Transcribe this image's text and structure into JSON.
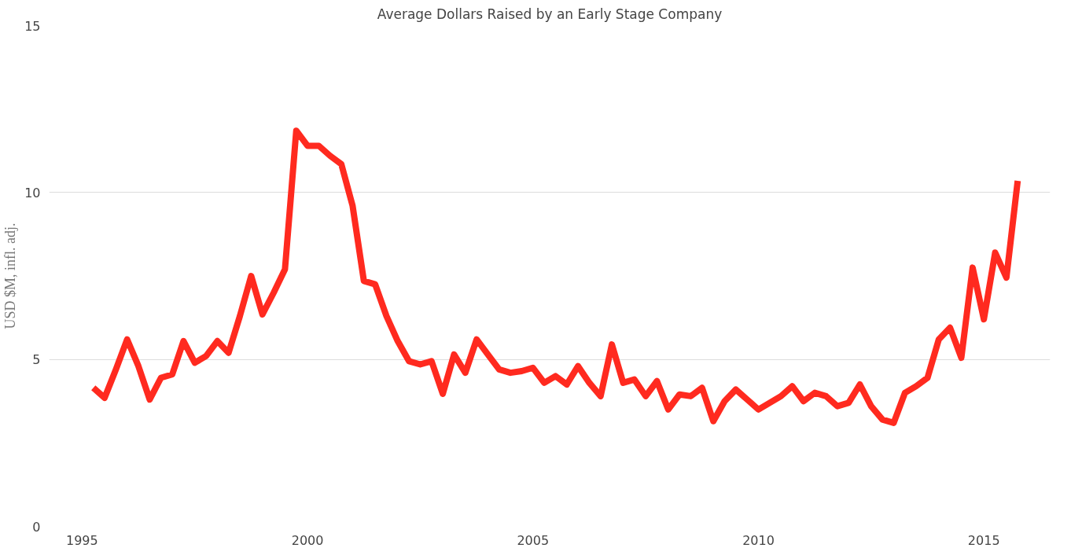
{
  "chart_data": {
    "type": "line",
    "title": "Average Dollars Raised by an Early Stage Company",
    "ylabel": "USD $M, infl. adj.",
    "x": [
      1995.25,
      1995.5,
      1995.75,
      1996,
      1996.25,
      1996.5,
      1996.75,
      1997,
      1997.25,
      1997.5,
      1997.75,
      1998,
      1998.25,
      1998.5,
      1998.75,
      1999,
      1999.25,
      1999.5,
      1999.75,
      2000,
      2000.25,
      2000.5,
      2000.75,
      2001,
      2001.25,
      2001.5,
      2001.75,
      2002,
      2002.25,
      2002.5,
      2002.75,
      2003,
      2003.25,
      2003.5,
      2003.75,
      2004,
      2004.25,
      2004.5,
      2004.75,
      2005,
      2005.25,
      2005.5,
      2005.75,
      2006,
      2006.25,
      2006.5,
      2006.75,
      2007,
      2007.25,
      2007.5,
      2007.75,
      2008,
      2008.25,
      2008.5,
      2008.75,
      2009,
      2009.25,
      2009.5,
      2009.75,
      2010,
      2010.25,
      2010.5,
      2010.75,
      2011,
      2011.25,
      2011.5,
      2011.75,
      2012,
      2012.25,
      2012.5,
      2012.75,
      2013,
      2013.25,
      2013.5,
      2013.75,
      2014,
      2014.25,
      2014.5,
      2014.75,
      2015,
      2015.25,
      2015.5,
      2015.75
    ],
    "series": [
      {
        "color": "#ff2a1f",
        "values": [
          4.15,
          3.85,
          4.7,
          5.6,
          4.8,
          3.8,
          4.45,
          4.55,
          5.55,
          4.9,
          5.1,
          5.55,
          5.2,
          6.3,
          7.5,
          6.35,
          7.0,
          7.7,
          11.85,
          11.4,
          11.4,
          11.1,
          10.85,
          9.6,
          7.35,
          7.25,
          6.3,
          5.55,
          4.95,
          4.85,
          4.95,
          3.97,
          5.15,
          4.6,
          5.6,
          5.15,
          4.7,
          4.6,
          4.65,
          4.75,
          4.3,
          4.5,
          4.25,
          4.8,
          4.3,
          3.9,
          5.45,
          4.3,
          4.4,
          3.9,
          4.35,
          3.5,
          3.95,
          3.9,
          4.15,
          3.15,
          3.75,
          4.1,
          3.8,
          3.5,
          3.7,
          3.9,
          4.2,
          3.75,
          4.0,
          3.9,
          3.6,
          3.7,
          4.25,
          3.6,
          3.2,
          3.1,
          4.0,
          4.2,
          4.45,
          5.6,
          5.95,
          5.05,
          7.75,
          6.2,
          8.2,
          7.45,
          10.35
        ]
      }
    ],
    "xlim": [
      1994.27,
      2016.47
    ],
    "xticks": [
      1995,
      2000,
      2005,
      2010,
      2015
    ],
    "ylim": [
      0,
      15
    ],
    "yticks": [
      0,
      5,
      10,
      15
    ],
    "grid": "y",
    "marker": "none",
    "line_style": "solid"
  }
}
